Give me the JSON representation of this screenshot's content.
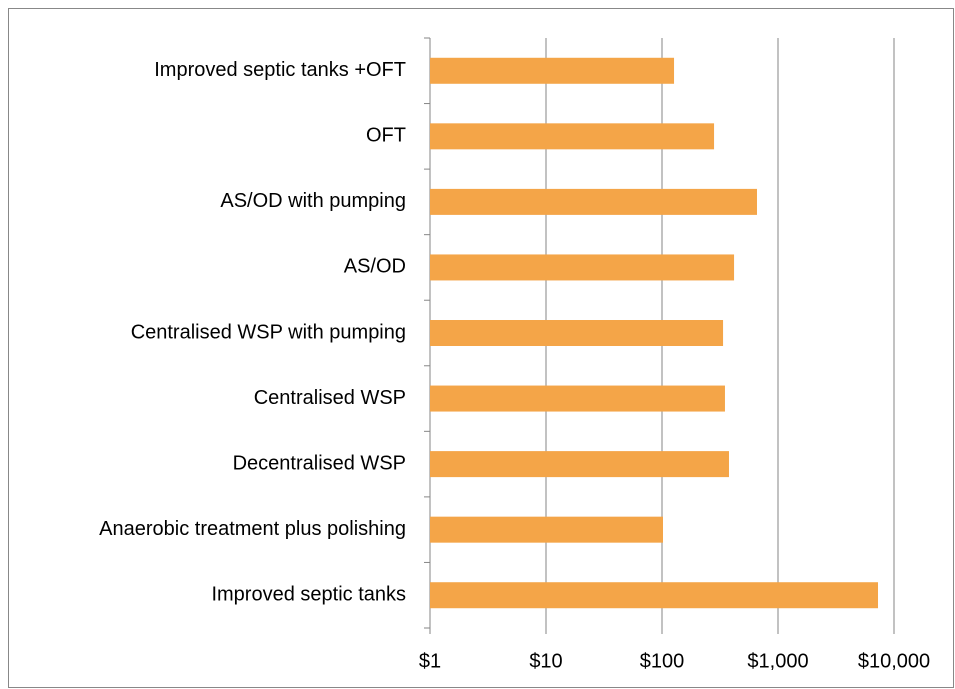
{
  "chart_data": {
    "type": "bar",
    "orientation": "horizontal",
    "x_log_scale": true,
    "categories": [
      "Improved septic tanks +OFT",
      "OFT",
      "AS/OD with pumping",
      "AS/OD",
      "Centralised WSP with pumping",
      "Centralised WSP",
      "Decentralised WSP",
      "Anaerobic treatment plus polishing",
      "Improved septic tanks"
    ],
    "values": [
      127,
      281,
      659,
      418,
      336,
      349,
      378,
      102,
      7280
    ],
    "color": "#f4a548",
    "xlim": [
      1,
      10000
    ],
    "xticks": [
      {
        "value": 1,
        "label": "$1"
      },
      {
        "value": 10,
        "label": "$10"
      },
      {
        "value": 100,
        "label": "$100"
      },
      {
        "value": 1000,
        "label": "$1,000"
      },
      {
        "value": 10000,
        "label": "$10,000"
      }
    ],
    "grid": true
  }
}
